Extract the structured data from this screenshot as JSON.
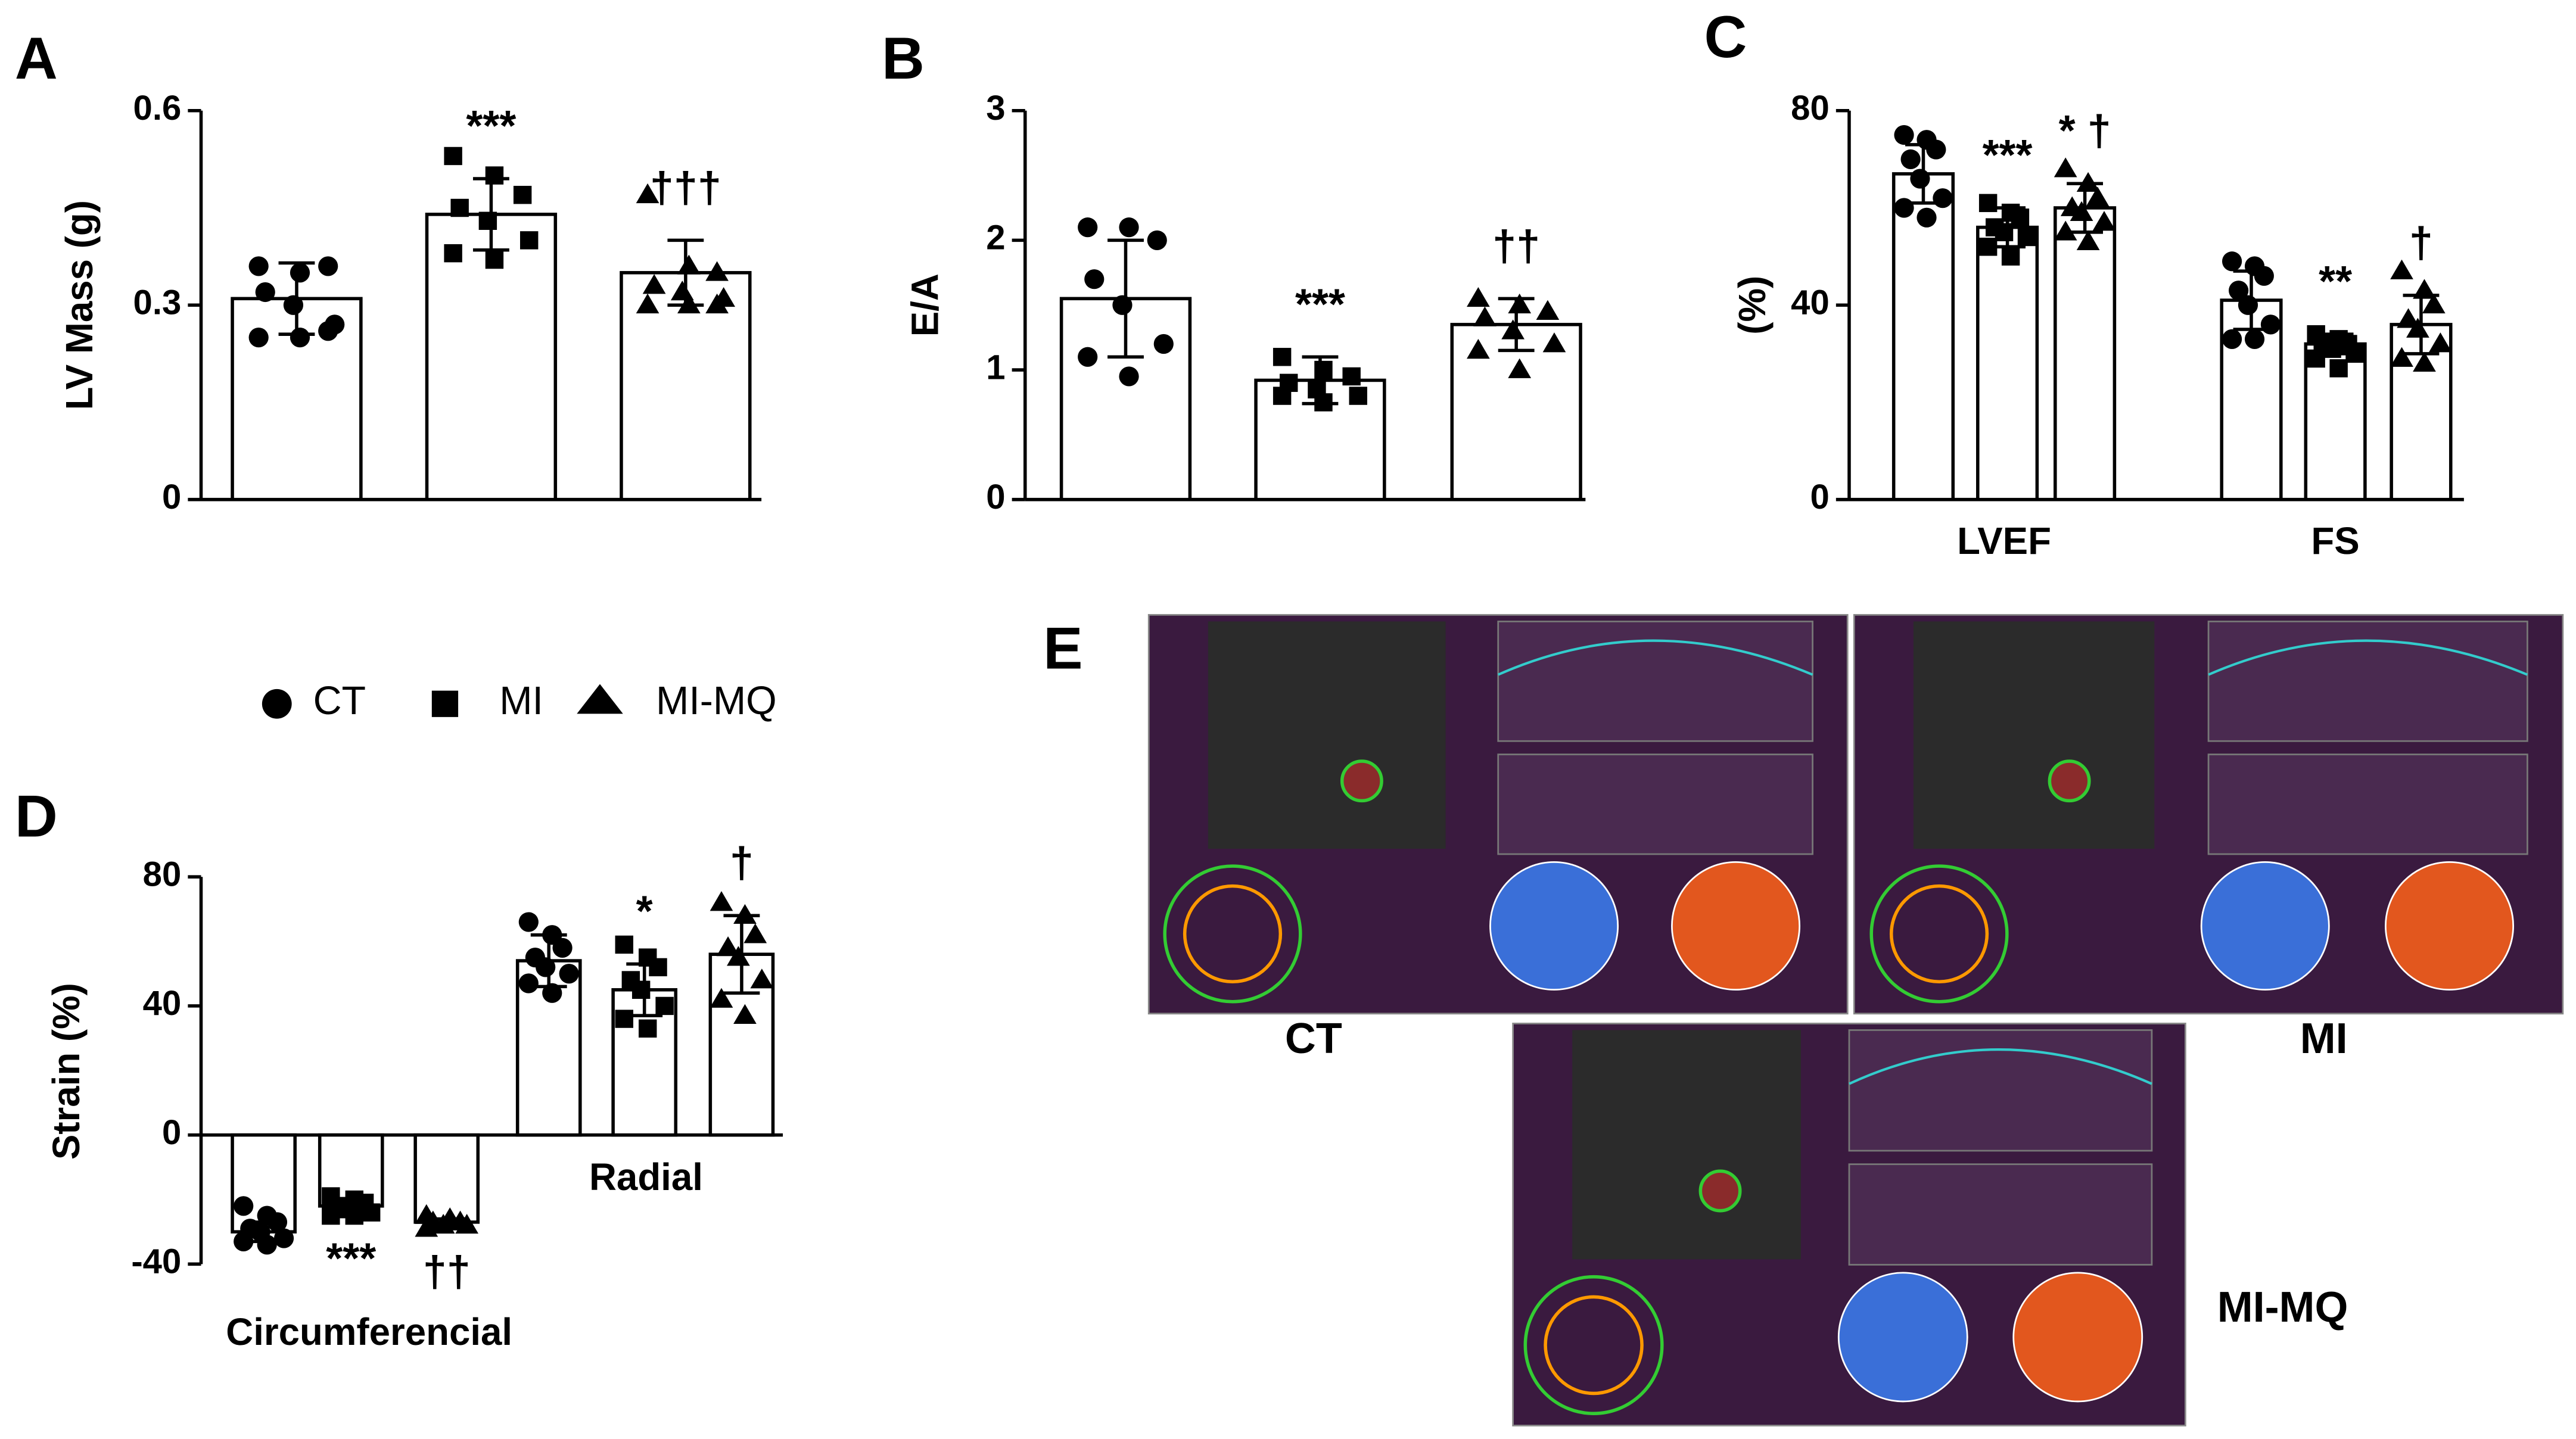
{
  "chart_data": {
    "legend": [
      {
        "name": "CT",
        "marker": "circle"
      },
      {
        "name": "MI",
        "marker": "square"
      },
      {
        "name": "MI-MQ",
        "marker": "triangle"
      }
    ],
    "panels": [
      {
        "type": "bar",
        "panel": "A",
        "ylabel": "LV Mass (g)",
        "ylim": [
          0,
          0.6
        ],
        "yticks": [
          0,
          0.3,
          0.6
        ],
        "categories": [
          null
        ],
        "series": [
          {
            "marker": "circle",
            "values": [
              0.31
            ],
            "errors": [
              0.055
            ],
            "points": [
              [
                0.36,
                0.35,
                0.36,
                0.32,
                0.3,
                0.27,
                0.25,
                0.25,
                0.26
              ]
            ],
            "annotations": [
              null
            ]
          },
          {
            "marker": "square",
            "values": [
              0.44
            ],
            "errors": [
              0.055
            ],
            "points": [
              [
                0.53,
                0.5,
                0.47,
                0.45,
                0.43,
                0.4,
                0.38,
                0.37
              ]
            ],
            "annotations": [
              "***"
            ]
          },
          {
            "marker": "triangle",
            "values": [
              0.35
            ],
            "errors": [
              0.05
            ],
            "points": [
              [
                0.47,
                0.36,
                0.35,
                0.33,
                0.32,
                0.31,
                0.3,
                0.3,
                0.3
              ]
            ],
            "annotations": [
              "†††"
            ]
          }
        ]
      },
      {
        "type": "bar",
        "panel": "B",
        "ylabel": "E/A",
        "ylim": [
          0,
          3
        ],
        "yticks": [
          0,
          1,
          2,
          3
        ],
        "categories": [
          null
        ],
        "series": [
          {
            "marker": "circle",
            "values": [
              1.55
            ],
            "errors": [
              0.45
            ],
            "points": [
              [
                2.1,
                2.1,
                2.0,
                1.7,
                1.5,
                1.2,
                1.1,
                0.95
              ]
            ],
            "annotations": [
              null
            ]
          },
          {
            "marker": "square",
            "values": [
              0.92
            ],
            "errors": [
              0.18
            ],
            "points": [
              [
                1.1,
                1.0,
                0.95,
                0.9,
                0.85,
                0.8,
                0.8,
                0.75
              ]
            ],
            "annotations": [
              "***"
            ]
          },
          {
            "marker": "triangle",
            "values": [
              1.35
            ],
            "errors": [
              0.2
            ],
            "points": [
              [
                1.55,
                1.5,
                1.45,
                1.4,
                1.3,
                1.2,
                1.15,
                1.0
              ]
            ],
            "annotations": [
              "††"
            ]
          }
        ]
      },
      {
        "type": "bar",
        "panel": "C",
        "ylabel": "(%)",
        "ylim": [
          0,
          80
        ],
        "yticks": [
          0,
          40,
          80
        ],
        "categories": [
          "LVEF",
          "FS"
        ],
        "series": [
          {
            "marker": "circle",
            "values": [
              67,
              41
            ],
            "errors": [
              6,
              6
            ],
            "points": [
              [
                75,
                74,
                72,
                70,
                66,
                62,
                60,
                58
              ],
              [
                49,
                48,
                46,
                43,
                40,
                36,
                33,
                33
              ]
            ],
            "annotations": [
              null,
              null
            ]
          },
          {
            "marker": "square",
            "values": [
              56,
              32
            ],
            "errors": [
              4,
              2
            ],
            "points": [
              [
                61,
                59,
                58,
                56,
                55,
                54,
                52,
                50
              ],
              [
                34,
                33,
                32,
                32,
                31,
                30,
                29,
                27
              ]
            ],
            "annotations": [
              "***",
              "**"
            ]
          },
          {
            "marker": "triangle",
            "values": [
              60,
              36
            ],
            "errors": [
              5,
              6
            ],
            "points": [
              [
                68,
                65,
                62,
                60,
                59,
                57,
                55,
                53
              ],
              [
                47,
                43,
                40,
                37,
                35,
                32,
                29,
                28
              ]
            ],
            "annotations": [
              "* †",
              "†"
            ]
          }
        ]
      },
      {
        "type": "bar",
        "panel": "D",
        "ylabel": "Strain (%)",
        "ylim": [
          -40,
          80
        ],
        "yticks": [
          -40,
          0,
          40,
          80
        ],
        "categories": [
          "Circumferencial",
          "Radial"
        ],
        "series": [
          {
            "marker": "circle",
            "values": [
              -30,
              54
            ],
            "errors": [
              3,
              8
            ],
            "points": [
              [
                -22,
                -25,
                -27,
                -29,
                -30,
                -32,
                -33,
                -34
              ],
              [
                66,
                62,
                58,
                55,
                52,
                50,
                47,
                44
              ]
            ],
            "annotations": [
              null,
              null
            ]
          },
          {
            "marker": "square",
            "values": [
              -22,
              45
            ],
            "errors": [
              2,
              8
            ],
            "points": [
              [
                -19,
                -20,
                -21,
                -22,
                -23,
                -24,
                -25,
                -25
              ],
              [
                59,
                55,
                52,
                48,
                45,
                40,
                36,
                33
              ]
            ],
            "annotations": [
              "***",
              "*"
            ]
          },
          {
            "marker": "triangle",
            "values": [
              -27,
              56
            ],
            "errors": [
              1,
              12
            ],
            "points": [
              [
                -25,
                -26,
                -27,
                -27,
                -28,
                -28,
                -29
              ],
              [
                72,
                68,
                62,
                58,
                55,
                48,
                42,
                37
              ]
            ],
            "annotations": [
              "††",
              "†"
            ]
          }
        ]
      }
    ],
    "panel_e": {
      "panel": "E",
      "images": [
        {
          "label": "CT"
        },
        {
          "label": "MI"
        },
        {
          "label": "MI-MQ"
        }
      ]
    }
  }
}
